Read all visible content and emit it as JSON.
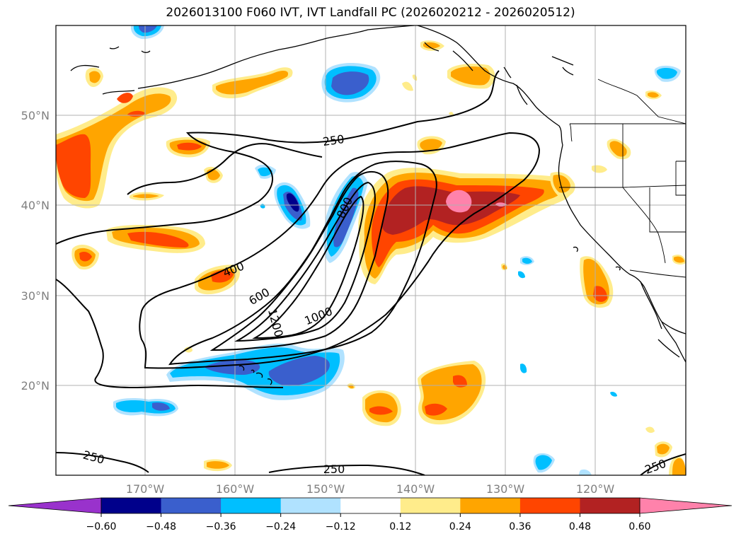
{
  "title": "2026013100 F060 IVT, IVT Landfall PC (2026020212 - 2026020512)",
  "lat_labels": [
    "50°N",
    "40°N",
    "30°N",
    "20°N"
  ],
  "lon_labels": [
    "170°W",
    "160°W",
    "150°W",
    "140°W",
    "130°W",
    "120°W"
  ],
  "contour_labels": [
    "250",
    "400",
    "600",
    "800",
    "1000",
    "1200",
    "250",
    "250"
  ],
  "colorbar": {
    "ticks": [
      "−0.60",
      "−0.48",
      "−0.36",
      "−0.24",
      "−0.12",
      "0.12",
      "0.24",
      "0.36",
      "0.48",
      "0.60"
    ],
    "colors": [
      "#9932cc",
      "#00008b",
      "#3a5fcd",
      "#00bfff",
      "#b0e2ff",
      "#ffffff",
      "#ffec8b",
      "#ffa500",
      "#ff4500",
      "#b22222",
      "#ff82ab"
    ]
  },
  "colors": {
    "neg_deep": "#00008b",
    "neg_mid": "#3a5fcd",
    "neg_cyan": "#00bfff",
    "neg_light": "#b0e2ff",
    "pos_light": "#ffec8b",
    "pos_orange": "#ffa500",
    "pos_red": "#ff4500",
    "pos_dark": "#b22222",
    "pos_pink": "#ff82ab",
    "grid": "#b0b0b0",
    "axis_label": "#808080"
  },
  "icons": [
    "colorbar-left-arrow",
    "colorbar-right-arrow"
  ]
}
